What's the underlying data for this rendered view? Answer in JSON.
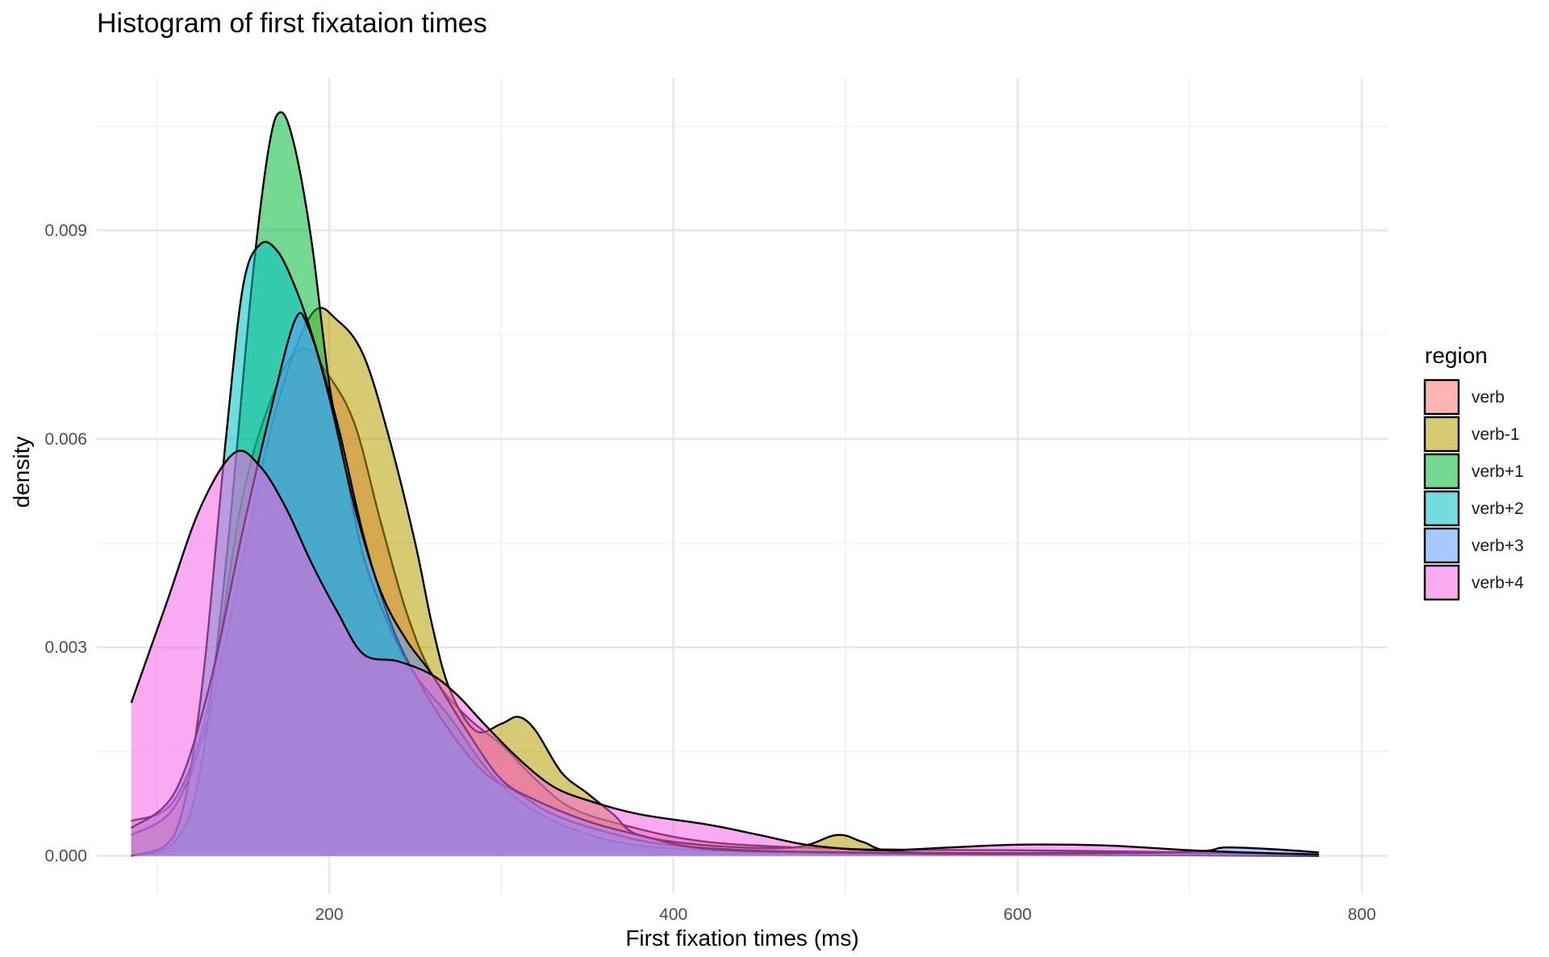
{
  "chart_data": {
    "type": "area",
    "title": "Histogram of first fixataion times",
    "xlabel": "First fixation times (ms)",
    "ylabel": "density",
    "xlim": [
      65,
      815
    ],
    "ylim": [
      -0.00055,
      0.0112
    ],
    "x_ticks": [
      200,
      400,
      600,
      800
    ],
    "x_minor_ticks": [
      100,
      300,
      500,
      700
    ],
    "y_ticks": [
      0.0,
      0.003,
      0.006,
      0.009
    ],
    "y_tick_labels": [
      "0.000",
      "0.003",
      "0.006",
      "0.009"
    ],
    "y_minor_ticks": [
      0.0015,
      0.0045,
      0.0075,
      0.0105
    ],
    "grid": true,
    "legend": {
      "title": "region",
      "position": "right"
    },
    "series": [
      {
        "name": "verb",
        "color": "#F8766D",
        "points": [
          [
            85,
            0.0005
          ],
          [
            110,
            0.0008
          ],
          [
            130,
            0.0022
          ],
          [
            150,
            0.0052
          ],
          [
            170,
            0.0068
          ],
          [
            185,
            0.0073
          ],
          [
            200,
            0.0069
          ],
          [
            215,
            0.0062
          ],
          [
            230,
            0.0048
          ],
          [
            245,
            0.0035
          ],
          [
            260,
            0.0026
          ],
          [
            280,
            0.002
          ],
          [
            300,
            0.0016
          ],
          [
            320,
            0.0011
          ],
          [
            340,
            0.0007
          ],
          [
            370,
            0.00045
          ],
          [
            420,
            0.0002
          ],
          [
            500,
            0.0001
          ],
          [
            600,
            8e-05
          ],
          [
            700,
            5e-05
          ],
          [
            775,
            1e-05
          ]
        ]
      },
      {
        "name": "verb-1",
        "color": "#B79F00",
        "points": [
          [
            85,
            0.0003
          ],
          [
            110,
            0.0007
          ],
          [
            130,
            0.002
          ],
          [
            150,
            0.0043
          ],
          [
            170,
            0.0065
          ],
          [
            190,
            0.0078
          ],
          [
            205,
            0.0077
          ],
          [
            220,
            0.0072
          ],
          [
            235,
            0.006
          ],
          [
            250,
            0.0045
          ],
          [
            260,
            0.0033
          ],
          [
            270,
            0.0024
          ],
          [
            285,
            0.0018
          ],
          [
            300,
            0.0019
          ],
          [
            310,
            0.002
          ],
          [
            320,
            0.0018
          ],
          [
            335,
            0.0012
          ],
          [
            350,
            0.0009
          ],
          [
            365,
            0.0006
          ],
          [
            380,
            0.0003
          ],
          [
            420,
            0.00015
          ],
          [
            470,
            0.00012
          ],
          [
            495,
            0.0003
          ],
          [
            510,
            0.0002
          ],
          [
            530,
            6e-05
          ],
          [
            600,
            4e-05
          ],
          [
            700,
            5e-05
          ],
          [
            775,
            2e-05
          ]
        ]
      },
      {
        "name": "verb+1",
        "color": "#00BA38",
        "points": [
          [
            85,
            0.0
          ],
          [
            110,
            0.0002
          ],
          [
            125,
            0.0012
          ],
          [
            140,
            0.0042
          ],
          [
            155,
            0.0082
          ],
          [
            165,
            0.0102
          ],
          [
            172,
            0.0107
          ],
          [
            180,
            0.0102
          ],
          [
            190,
            0.0088
          ],
          [
            200,
            0.0068
          ],
          [
            210,
            0.0055
          ],
          [
            220,
            0.0043
          ],
          [
            235,
            0.0033
          ],
          [
            250,
            0.0026
          ],
          [
            270,
            0.002
          ],
          [
            290,
            0.0013
          ],
          [
            310,
            0.0008
          ],
          [
            340,
            0.0004
          ],
          [
            380,
            0.00015
          ],
          [
            450,
            5e-05
          ],
          [
            550,
            2e-05
          ],
          [
            700,
            1e-05
          ],
          [
            775,
            0.0
          ]
        ]
      },
      {
        "name": "verb+2",
        "color": "#00BFC4",
        "points": [
          [
            85,
            0.0
          ],
          [
            110,
            0.0003
          ],
          [
            125,
            0.0022
          ],
          [
            140,
            0.006
          ],
          [
            150,
            0.0082
          ],
          [
            160,
            0.0088
          ],
          [
            170,
            0.0087
          ],
          [
            180,
            0.0082
          ],
          [
            190,
            0.0075
          ],
          [
            205,
            0.0062
          ],
          [
            220,
            0.0046
          ],
          [
            235,
            0.0034
          ],
          [
            250,
            0.0026
          ],
          [
            270,
            0.0018
          ],
          [
            290,
            0.0012
          ],
          [
            310,
            0.0009
          ],
          [
            330,
            0.0006
          ],
          [
            360,
            0.00035
          ],
          [
            400,
            0.00015
          ],
          [
            480,
            5e-05
          ],
          [
            600,
            2e-05
          ],
          [
            700,
            4e-05
          ],
          [
            775,
            0.0
          ]
        ]
      },
      {
        "name": "verb+3",
        "color": "#619CFF",
        "points": [
          [
            85,
            0.0004
          ],
          [
            110,
            0.0009
          ],
          [
            130,
            0.0024
          ],
          [
            150,
            0.0047
          ],
          [
            165,
            0.0063
          ],
          [
            180,
            0.0077
          ],
          [
            188,
            0.0076
          ],
          [
            200,
            0.0066
          ],
          [
            215,
            0.005
          ],
          [
            230,
            0.0038
          ],
          [
            245,
            0.0031
          ],
          [
            260,
            0.0026
          ],
          [
            280,
            0.0018
          ],
          [
            300,
            0.0011
          ],
          [
            320,
            0.0008
          ],
          [
            350,
            0.0005
          ],
          [
            380,
            0.0003
          ],
          [
            420,
            0.0001
          ],
          [
            500,
            5e-05
          ],
          [
            600,
            3e-05
          ],
          [
            700,
            6e-05
          ],
          [
            720,
            0.00012
          ],
          [
            745,
            0.0001
          ],
          [
            775,
            5e-05
          ]
        ]
      },
      {
        "name": "verb+4",
        "color": "#F564E3",
        "points": [
          [
            85,
            0.0022
          ],
          [
            105,
            0.0036
          ],
          [
            125,
            0.005
          ],
          [
            145,
            0.0058
          ],
          [
            160,
            0.0056
          ],
          [
            175,
            0.005
          ],
          [
            190,
            0.0042
          ],
          [
            205,
            0.0035
          ],
          [
            220,
            0.0029
          ],
          [
            240,
            0.0028
          ],
          [
            260,
            0.0026
          ],
          [
            275,
            0.0023
          ],
          [
            290,
            0.0019
          ],
          [
            310,
            0.0014
          ],
          [
            330,
            0.001
          ],
          [
            350,
            0.0008
          ],
          [
            380,
            0.0006
          ],
          [
            420,
            0.00045
          ],
          [
            450,
            0.0003
          ],
          [
            480,
            0.00015
          ],
          [
            520,
            8e-05
          ],
          [
            560,
            0.00012
          ],
          [
            600,
            0.00016
          ],
          [
            650,
            0.00015
          ],
          [
            700,
            8e-05
          ],
          [
            730,
            5e-05
          ],
          [
            775,
            2e-05
          ]
        ]
      }
    ]
  }
}
